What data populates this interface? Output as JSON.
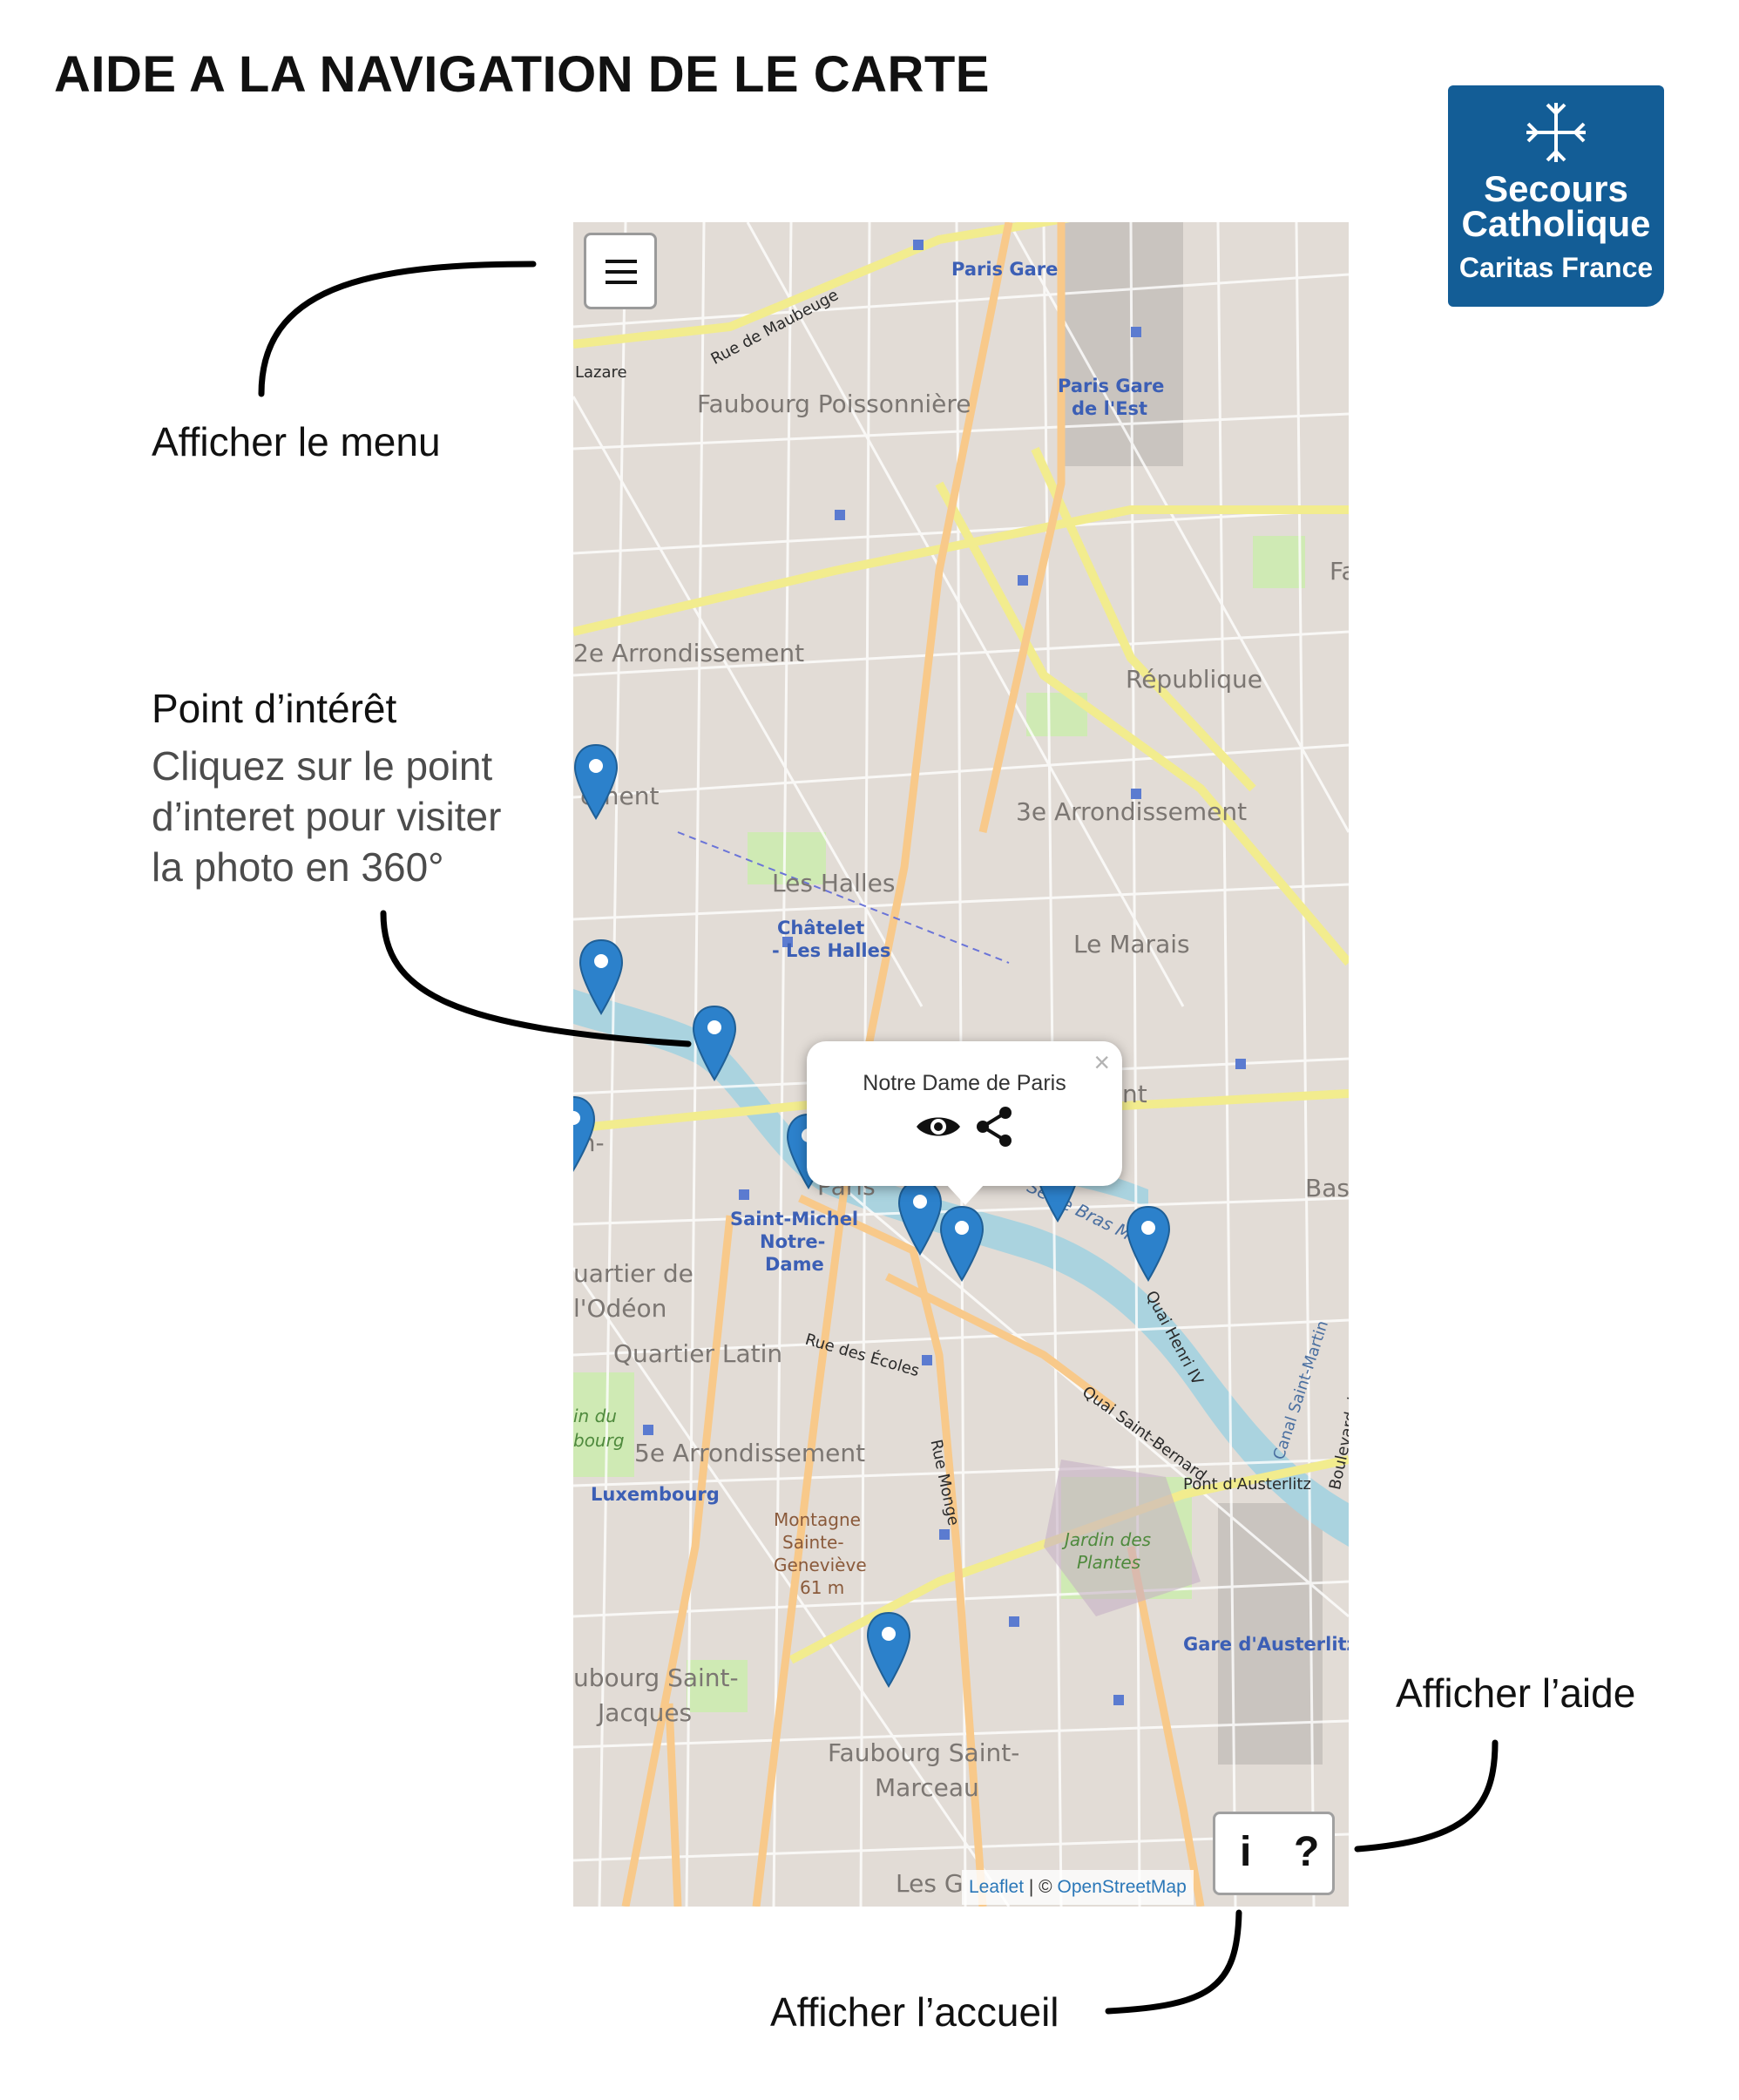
{
  "page": {
    "title": "AIDE A LA NAVIGATION DE LE CARTE"
  },
  "logo": {
    "line1": "Secours",
    "line2": "Catholique",
    "line3": "Caritas France",
    "color": "#135d96"
  },
  "annotations": {
    "menu": "Afficher le menu",
    "poi_title": "Point d’intérêt",
    "poi_desc": [
      "Cliquez sur le point",
      "d’interet pour visiter",
      "la photo en 360°"
    ],
    "help": "Afficher l’aide",
    "home": "Afficher l’accueil"
  },
  "map": {
    "menu_icon": "hamburger-icon",
    "labels": {
      "paris_gare_nord": "Paris Gare",
      "rue_maubeuge": "Rue de Maubeuge",
      "lazare": "Lazare",
      "faubourg_poissonniere": "Faubourg Poissonnière",
      "paris_gare_est_1": "Paris Gare",
      "paris_gare_est_2": "de l'Est",
      "arr2": "2e Arrondissement",
      "republique": "République",
      "fa": "Fa",
      "ement": "ement",
      "arr3": "3e Arrondissement",
      "les_halles": "Les Halles",
      "chatelet_1": "Châtelet",
      "chatelet_2": "- Les Halles",
      "le_marais": "Le Marais",
      "paris": "Paris",
      "nt": "nt",
      "bas": "Bas",
      "in": "in-",
      "saint_michel_1": "Saint-Michel",
      "saint_michel_2": "Notre-",
      "saint_michel_3": "Dame",
      "quartier_odeon_1": "uartier de",
      "quartier_odeon_2": "l'Odéon",
      "quartier_latin": "Quartier Latin",
      "rue_ecoles": "Rue des Écoles",
      "quai_henri": "Quai Henri IV",
      "canal": "Canal Saint-Martin",
      "blvd_bastille": "Boulevard de la Bastille",
      "quai_bernard": "Quai Saint-Bernard",
      "jardin_du": "in du",
      "bourg": "bourg",
      "arr5": "5e Arrondissement",
      "luxembourg": "Luxembourg",
      "rue_monge": "Rue Monge",
      "pont_austerlitz": "Pont d'Austerlitz",
      "montagne": "Montagne",
      "sainte": "Sainte-",
      "genevieve": "Geneviève",
      "altitude": "61 m",
      "jardin_plantes_1": "Jardin des",
      "jardin_plantes_2": "Plantes",
      "gare_austerlitz": "Gare d'Austerlitz",
      "faubourg_saint_jacques_1": "ubourg Saint-",
      "faubourg_saint_jacques_2": "Jacques",
      "faubourg_saint_marceau_1": "Faubourg Saint-",
      "faubourg_saint_marceau_2": "Marceau",
      "les_g": "Les G",
      "bras_marie": "Seine Bras Marie"
    },
    "popup": {
      "title": "Notre Dame de Paris",
      "close": "×",
      "view_icon": "eye-icon",
      "share_icon": "share-icon"
    },
    "info_button": {
      "info": "i",
      "help": "?"
    },
    "attribution": {
      "leaflet": "Leaflet",
      "sep": " | © ",
      "osm": "OpenStreetMap"
    },
    "colors": {
      "marker": "#2c81cb",
      "water": "#aad3df",
      "major_road": "#f7f3a6",
      "orange_road": "#fcd6a4",
      "land": "#e2dcd6"
    }
  }
}
